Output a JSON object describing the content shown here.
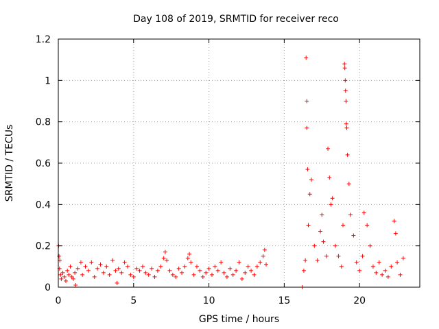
{
  "chart_data": {
    "type": "scatter",
    "title": "Day 108 of 2019, SRMTID for receiver reco",
    "xlabel": "GPS time / hours",
    "ylabel": "SRMTID / TECUs",
    "xlim": [
      0,
      24
    ],
    "ylim": [
      0,
      1.2
    ],
    "xticks": [
      0,
      5,
      10,
      15,
      20
    ],
    "xtick_labels": [
      "0",
      "5",
      "10",
      "15",
      "20"
    ],
    "yticks": [
      0,
      0.2,
      0.4,
      0.6,
      0.8,
      1,
      1.2
    ],
    "ytick_labels": [
      "0",
      "0.2",
      "0.4",
      "0.6",
      "0.8",
      "1",
      "1.2"
    ],
    "grid": true,
    "marker": "+",
    "color": "#ff0000",
    "series": [
      {
        "name": "SRMTID",
        "points": [
          [
            0.02,
            0.2
          ],
          [
            0.05,
            0.15
          ],
          [
            0.08,
            0.09
          ],
          [
            0.1,
            0.13
          ],
          [
            0.15,
            0.06
          ],
          [
            0.2,
            0.04
          ],
          [
            0.3,
            0.07
          ],
          [
            0.4,
            0.05
          ],
          [
            0.5,
            0.03
          ],
          [
            0.6,
            0.08
          ],
          [
            0.7,
            0.06
          ],
          [
            0.8,
            0.1
          ],
          [
            0.9,
            0.05
          ],
          [
            1.0,
            0.04
          ],
          [
            1.1,
            0.07
          ],
          [
            1.15,
            0.01
          ],
          [
            1.3,
            0.09
          ],
          [
            1.5,
            0.12
          ],
          [
            1.6,
            0.06
          ],
          [
            1.8,
            0.1
          ],
          [
            2.0,
            0.08
          ],
          [
            2.2,
            0.12
          ],
          [
            2.4,
            0.05
          ],
          [
            2.6,
            0.09
          ],
          [
            2.8,
            0.11
          ],
          [
            3.0,
            0.07
          ],
          [
            3.2,
            0.1
          ],
          [
            3.4,
            0.06
          ],
          [
            3.6,
            0.13
          ],
          [
            3.8,
            0.08
          ],
          [
            3.9,
            0.02
          ],
          [
            4.0,
            0.09
          ],
          [
            4.2,
            0.07
          ],
          [
            4.4,
            0.12
          ],
          [
            4.6,
            0.1
          ],
          [
            4.8,
            0.06
          ],
          [
            5.0,
            0.05
          ],
          [
            5.2,
            0.09
          ],
          [
            5.4,
            0.08
          ],
          [
            5.6,
            0.1
          ],
          [
            5.8,
            0.07
          ],
          [
            6.0,
            0.06
          ],
          [
            6.2,
            0.09
          ],
          [
            6.4,
            0.05
          ],
          [
            6.6,
            0.08
          ],
          [
            6.8,
            0.1
          ],
          [
            7.0,
            0.14
          ],
          [
            7.1,
            0.17
          ],
          [
            7.2,
            0.13
          ],
          [
            7.4,
            0.08
          ],
          [
            7.6,
            0.06
          ],
          [
            7.8,
            0.05
          ],
          [
            8.0,
            0.09
          ],
          [
            8.2,
            0.07
          ],
          [
            8.4,
            0.1
          ],
          [
            8.6,
            0.14
          ],
          [
            8.7,
            0.16
          ],
          [
            8.8,
            0.12
          ],
          [
            9.0,
            0.06
          ],
          [
            9.2,
            0.1
          ],
          [
            9.4,
            0.08
          ],
          [
            9.6,
            0.05
          ],
          [
            9.8,
            0.07
          ],
          [
            10.0,
            0.09
          ],
          [
            10.2,
            0.06
          ],
          [
            10.4,
            0.1
          ],
          [
            10.6,
            0.08
          ],
          [
            10.8,
            0.12
          ],
          [
            11.0,
            0.07
          ],
          [
            11.2,
            0.05
          ],
          [
            11.4,
            0.09
          ],
          [
            11.6,
            0.06
          ],
          [
            11.8,
            0.08
          ],
          [
            12.0,
            0.12
          ],
          [
            12.2,
            0.04
          ],
          [
            12.4,
            0.07
          ],
          [
            12.6,
            0.1
          ],
          [
            12.8,
            0.08
          ],
          [
            13.0,
            0.06
          ],
          [
            13.2,
            0.1
          ],
          [
            13.4,
            0.12
          ],
          [
            13.6,
            0.15
          ],
          [
            13.7,
            0.18
          ],
          [
            13.8,
            0.11
          ],
          [
            16.2,
            0.0
          ],
          [
            16.3,
            0.08
          ],
          [
            16.4,
            0.13
          ],
          [
            16.45,
            1.11
          ],
          [
            16.5,
            0.9
          ],
          [
            16.5,
            0.77
          ],
          [
            16.55,
            0.57
          ],
          [
            16.6,
            0.3
          ],
          [
            16.7,
            0.45
          ],
          [
            16.8,
            0.52
          ],
          [
            17.0,
            0.2
          ],
          [
            17.2,
            0.13
          ],
          [
            17.4,
            0.27
          ],
          [
            17.5,
            0.35
          ],
          [
            17.6,
            0.22
          ],
          [
            17.8,
            0.15
          ],
          [
            17.9,
            0.67
          ],
          [
            18.0,
            0.53
          ],
          [
            18.1,
            0.4
          ],
          [
            18.2,
            0.43
          ],
          [
            18.4,
            0.2
          ],
          [
            18.6,
            0.15
          ],
          [
            18.8,
            0.1
          ],
          [
            18.9,
            0.3
          ],
          [
            19.0,
            1.08
          ],
          [
            19.02,
            1.06
          ],
          [
            19.05,
            1.0
          ],
          [
            19.07,
            0.95
          ],
          [
            19.1,
            0.9
          ],
          [
            19.12,
            0.79
          ],
          [
            19.15,
            0.77
          ],
          [
            19.2,
            0.64
          ],
          [
            19.3,
            0.5
          ],
          [
            19.4,
            0.35
          ],
          [
            19.6,
            0.25
          ],
          [
            19.8,
            0.12
          ],
          [
            20.0,
            0.08
          ],
          [
            20.2,
            0.15
          ],
          [
            20.3,
            0.36
          ],
          [
            20.5,
            0.3
          ],
          [
            20.7,
            0.2
          ],
          [
            20.9,
            0.1
          ],
          [
            21.1,
            0.07
          ],
          [
            21.3,
            0.12
          ],
          [
            21.5,
            0.06
          ],
          [
            21.7,
            0.08
          ],
          [
            21.9,
            0.05
          ],
          [
            22.1,
            0.1
          ],
          [
            22.3,
            0.32
          ],
          [
            22.4,
            0.26
          ],
          [
            22.5,
            0.12
          ],
          [
            22.7,
            0.06
          ],
          [
            22.9,
            0.14
          ]
        ]
      }
    ]
  }
}
